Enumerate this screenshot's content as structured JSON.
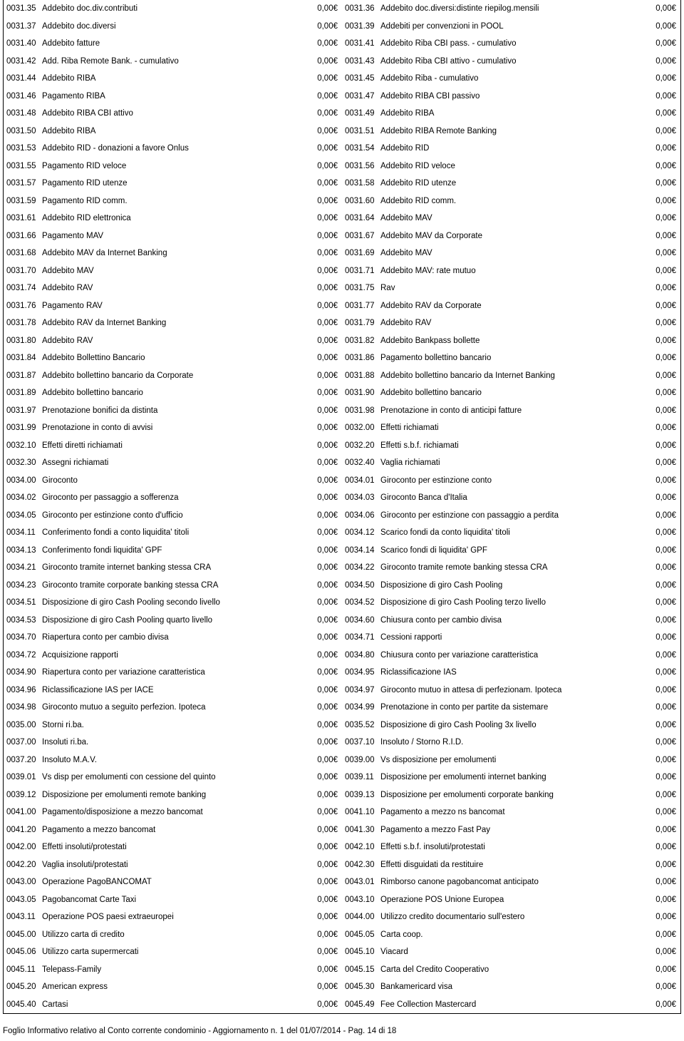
{
  "amount": "0,00€",
  "rows": [
    {
      "lc": "0031.35",
      "ld": "Addebito doc.div.contributi",
      "rc": "0031.36",
      "rd": "Addebito doc.diversi:distinte riepilog.mensili"
    },
    {
      "lc": "0031.37",
      "ld": "Addebito doc.diversi",
      "rc": "0031.39",
      "rd": "Addebiti per convenzioni in POOL"
    },
    {
      "lc": "0031.40",
      "ld": "Addebito fatture",
      "rc": "0031.41",
      "rd": "Addebito Riba CBI pass. - cumulativo"
    },
    {
      "lc": "0031.42",
      "ld": "Add. Riba Remote Bank. - cumulativo",
      "rc": "0031.43",
      "rd": "Addebito Riba CBI attivo - cumulativo"
    },
    {
      "lc": "0031.44",
      "ld": "Addebito RIBA",
      "rc": "0031.45",
      "rd": "Addebito Riba - cumulativo"
    },
    {
      "lc": "0031.46",
      "ld": "Pagamento RIBA",
      "rc": "0031.47",
      "rd": "Addebito RIBA CBI passivo"
    },
    {
      "lc": "0031.48",
      "ld": "Addebito RIBA CBI attivo",
      "rc": "0031.49",
      "rd": "Addebito RIBA"
    },
    {
      "lc": "0031.50",
      "ld": "Addebito RIBA",
      "rc": "0031.51",
      "rd": "Addebito RIBA Remote Banking"
    },
    {
      "lc": "0031.53",
      "ld": "Addebito RID - donazioni a favore Onlus",
      "rc": "0031.54",
      "rd": "Addebito RID"
    },
    {
      "lc": "0031.55",
      "ld": "Pagamento RID veloce",
      "rc": "0031.56",
      "rd": "Addebito RID veloce"
    },
    {
      "lc": "0031.57",
      "ld": "Pagamento RID utenze",
      "rc": "0031.58",
      "rd": "Addebito RID utenze"
    },
    {
      "lc": "0031.59",
      "ld": "Pagamento RID comm.",
      "rc": "0031.60",
      "rd": "Addebito RID comm."
    },
    {
      "lc": "0031.61",
      "ld": "Addebito RID elettronica",
      "rc": "0031.64",
      "rd": "Addebito MAV"
    },
    {
      "lc": "0031.66",
      "ld": "Pagamento MAV",
      "rc": "0031.67",
      "rd": "Addebito MAV da Corporate"
    },
    {
      "lc": "0031.68",
      "ld": "Addebito MAV da Internet Banking",
      "rc": "0031.69",
      "rd": "Addebito MAV"
    },
    {
      "lc": "0031.70",
      "ld": "Addebito MAV",
      "rc": "0031.71",
      "rd": "Addebito MAV: rate mutuo"
    },
    {
      "lc": "0031.74",
      "ld": "Addebito RAV",
      "rc": "0031.75",
      "rd": "Rav"
    },
    {
      "lc": "0031.76",
      "ld": "Pagamento RAV",
      "rc": "0031.77",
      "rd": "Addebito RAV da Corporate"
    },
    {
      "lc": "0031.78",
      "ld": "Addebito RAV da Internet Banking",
      "rc": "0031.79",
      "rd": "Addebito RAV"
    },
    {
      "lc": "0031.80",
      "ld": "Addebito RAV",
      "rc": "0031.82",
      "rd": "Addebito Bankpass bollette"
    },
    {
      "lc": "0031.84",
      "ld": "Addebito Bollettino Bancario",
      "rc": "0031.86",
      "rd": "Pagamento bollettino bancario"
    },
    {
      "lc": "0031.87",
      "ld": "Addebito bollettino bancario da Corporate",
      "rc": "0031.88",
      "rd": "Addebito bollettino bancario da Internet Banking"
    },
    {
      "lc": "0031.89",
      "ld": "Addebito bollettino bancario",
      "rc": "0031.90",
      "rd": "Addebito bollettino bancario"
    },
    {
      "lc": "0031.97",
      "ld": "Prenotazione bonifici da distinta",
      "rc": "0031.98",
      "rd": "Prenotazione in conto di anticipi fatture"
    },
    {
      "lc": "0031.99",
      "ld": "Prenotazione in conto di avvisi",
      "rc": "0032.00",
      "rd": "Effetti richiamati"
    },
    {
      "lc": "0032.10",
      "ld": "Effetti diretti richiamati",
      "rc": "0032.20",
      "rd": "Effetti s.b.f. richiamati"
    },
    {
      "lc": "0032.30",
      "ld": "Assegni richiamati",
      "rc": "0032.40",
      "rd": "Vaglia richiamati"
    },
    {
      "lc": "0034.00",
      "ld": "Giroconto",
      "rc": "0034.01",
      "rd": "Giroconto per estinzione conto"
    },
    {
      "lc": "0034.02",
      "ld": "Giroconto per passaggio a sofferenza",
      "rc": "0034.03",
      "rd": "Giroconto Banca d'Italia"
    },
    {
      "lc": "0034.05",
      "ld": "Giroconto per estinzione conto d'ufficio",
      "rc": "0034.06",
      "rd": "Giroconto per estinzione con passaggio a perdita"
    },
    {
      "lc": "0034.11",
      "ld": "Conferimento fondi a conto liquidita' titoli",
      "rc": "0034.12",
      "rd": "Scarico fondi da conto liquidita' titoli"
    },
    {
      "lc": "0034.13",
      "ld": "Conferimento fondi liquidita' GPF",
      "rc": "0034.14",
      "rd": "Scarico fondi di liquidita' GPF"
    },
    {
      "lc": "0034.21",
      "ld": "Giroconto tramite internet banking stessa CRA",
      "rc": "0034.22",
      "rd": "Giroconto tramite remote banking stessa CRA"
    },
    {
      "lc": "0034.23",
      "ld": "Giroconto tramite corporate banking stessa CRA",
      "rc": "0034.50",
      "rd": "Disposizione di giro Cash Pooling"
    },
    {
      "lc": "0034.51",
      "ld": "Disposizione di giro Cash Pooling secondo livello",
      "rc": "0034.52",
      "rd": "Disposizione di giro Cash Pooling terzo livello"
    },
    {
      "lc": "0034.53",
      "ld": "Disposizione di giro Cash Pooling quarto livello",
      "rc": "0034.60",
      "rd": "Chiusura conto per cambio divisa"
    },
    {
      "lc": "0034.70",
      "ld": "Riapertura conto per cambio divisa",
      "rc": "0034.71",
      "rd": "Cessioni rapporti"
    },
    {
      "lc": "0034.72",
      "ld": "Acquisizione rapporti",
      "rc": "0034.80",
      "rd": "Chiusura conto per variazione caratteristica"
    },
    {
      "lc": "0034.90",
      "ld": "Riapertura conto per variazione caratteristica",
      "rc": "0034.95",
      "rd": "Riclassificazione IAS"
    },
    {
      "lc": "0034.96",
      "ld": "Riclassificazione IAS per IACE",
      "rc": "0034.97",
      "rd": "Giroconto mutuo in attesa di perfezionam. Ipoteca"
    },
    {
      "lc": "0034.98",
      "ld": "Giroconto mutuo a seguito perfezion. Ipoteca",
      "rc": "0034.99",
      "rd": "Prenotazione in conto per partite da sistemare"
    },
    {
      "lc": "0035.00",
      "ld": "Storni ri.ba.",
      "rc": "0035.52",
      "rd": "Disposizione di giro Cash Pooling 3x livello"
    },
    {
      "lc": "0037.00",
      "ld": "Insoluti ri.ba.",
      "rc": "0037.10",
      "rd": "Insoluto / Storno R.I.D."
    },
    {
      "lc": "0037.20",
      "ld": "Insoluto M.A.V.",
      "rc": "0039.00",
      "rd": "Vs disposizione per emolumenti"
    },
    {
      "lc": "0039.01",
      "ld": "Vs disp per emolumenti con cessione del quinto",
      "rc": "0039.11",
      "rd": "Disposizione per emolumenti internet banking"
    },
    {
      "lc": "0039.12",
      "ld": "Disposizione per emolumenti remote banking",
      "rc": "0039.13",
      "rd": "Disposizione per emolumenti corporate banking"
    },
    {
      "lc": "0041.00",
      "ld": "Pagamento/disposizione a mezzo bancomat",
      "rc": "0041.10",
      "rd": "Pagamento a mezzo ns bancomat"
    },
    {
      "lc": "0041.20",
      "ld": "Pagamento a mezzo bancomat",
      "rc": "0041.30",
      "rd": "Pagamento a mezzo Fast Pay"
    },
    {
      "lc": "0042.00",
      "ld": "Effetti insoluti/protestati",
      "rc": "0042.10",
      "rd": "Effetti s.b.f. insoluti/protestati"
    },
    {
      "lc": "0042.20",
      "ld": "Vaglia  insoluti/protestati",
      "rc": "0042.30",
      "rd": "Effetti disguidati da restituire"
    },
    {
      "lc": "0043.00",
      "ld": "Operazione PagoBANCOMAT",
      "rc": "0043.01",
      "rd": "Rimborso canone pagobancomat anticipato"
    },
    {
      "lc": "0043.05",
      "ld": "Pagobancomat Carte Taxi",
      "rc": "0043.10",
      "rd": "Operazione POS Unione Europea"
    },
    {
      "lc": "0043.11",
      "ld": "Operazione POS paesi extraeuropei",
      "rc": "0044.00",
      "rd": "Utilizzo credito documentario sull'estero"
    },
    {
      "lc": "0045.00",
      "ld": "Utilizzo carta di credito",
      "rc": "0045.05",
      "rd": "Carta coop."
    },
    {
      "lc": "0045.06",
      "ld": "Utilizzo carta supermercati",
      "rc": "0045.10",
      "rd": "Viacard"
    },
    {
      "lc": "0045.11",
      "ld": "Telepass-Family",
      "rc": "0045.15",
      "rd": "Carta del Credito Cooperativo"
    },
    {
      "lc": "0045.20",
      "ld": "American express",
      "rc": "0045.30",
      "rd": "Bankamericard visa"
    },
    {
      "lc": "0045.40",
      "ld": "Cartasi",
      "rc": "0045.49",
      "rd": "Fee Collection Mastercard"
    }
  ],
  "footer": "Foglio Informativo relativo al  Conto corrente condominio - Aggiornamento n. 1 del 01/07/2014 - Pag. 14 di 18"
}
